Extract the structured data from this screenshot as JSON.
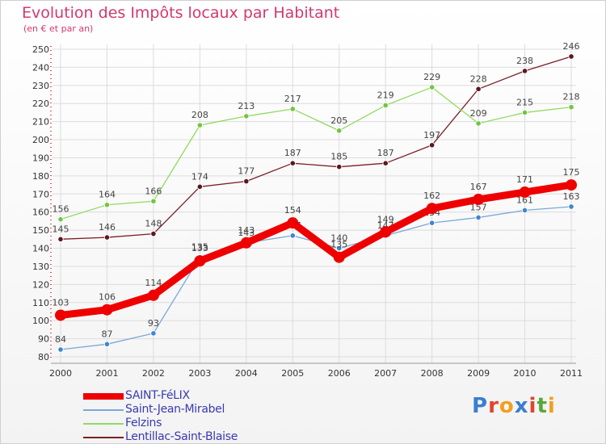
{
  "title": "Evolution des Impôts locaux par Habitant",
  "subtitle": "(en € et par an)",
  "brand": {
    "text": "Proxiti",
    "letter_colors": [
      "#3a7fd0",
      "#e0452b",
      "#f0a020",
      "#3a7fd0",
      "#e0452b",
      "#56a83a",
      "#f0a020"
    ]
  },
  "chart_data": {
    "type": "line",
    "title": "Evolution des Impôts locaux par Habitant",
    "subtitle": "(en € et par an)",
    "xlabel": "",
    "ylabel": "",
    "categories": [
      "2000",
      "2001",
      "2002",
      "2003",
      "2004",
      "2005",
      "2006",
      "2007",
      "2008",
      "2009",
      "2010",
      "2011"
    ],
    "ylim": [
      80,
      250
    ],
    "yticks": [
      80,
      90,
      100,
      110,
      120,
      130,
      140,
      150,
      160,
      170,
      180,
      190,
      200,
      210,
      220,
      230,
      240,
      250
    ],
    "grid": true,
    "legend_position": "bottom-left",
    "series": [
      {
        "name": "Lentillac-Saint-Blaise",
        "color": "#7a1e28",
        "marker_color": "#5e1520",
        "emphasis": false,
        "values": [
          145,
          146,
          148,
          174,
          177,
          187,
          185,
          187,
          197,
          228,
          238,
          246
        ]
      },
      {
        "name": "Felzins",
        "color": "#92da62",
        "marker_color": "#74c440",
        "emphasis": false,
        "values": [
          156,
          164,
          166,
          208,
          213,
          217,
          205,
          219,
          229,
          209,
          215,
          218
        ]
      },
      {
        "name": "Saint-Jean-Mirabel",
        "color": "#7aa9d8",
        "marker_color": "#3f86cf",
        "emphasis": false,
        "values": [
          84,
          87,
          93,
          135,
          143,
          147,
          140,
          147,
          154,
          157,
          161,
          163
        ]
      },
      {
        "name": "SAINT-FéLIX",
        "color": "#ee0000",
        "marker_color": "#ee0000",
        "emphasis": true,
        "values": [
          103,
          106,
          114,
          133,
          143,
          154,
          135,
          149,
          162,
          167,
          171,
          175
        ]
      }
    ],
    "legend_order": [
      "SAINT-FéLIX",
      "Saint-Jean-Mirabel",
      "Felzins",
      "Lentillac-Saint-Blaise"
    ]
  }
}
